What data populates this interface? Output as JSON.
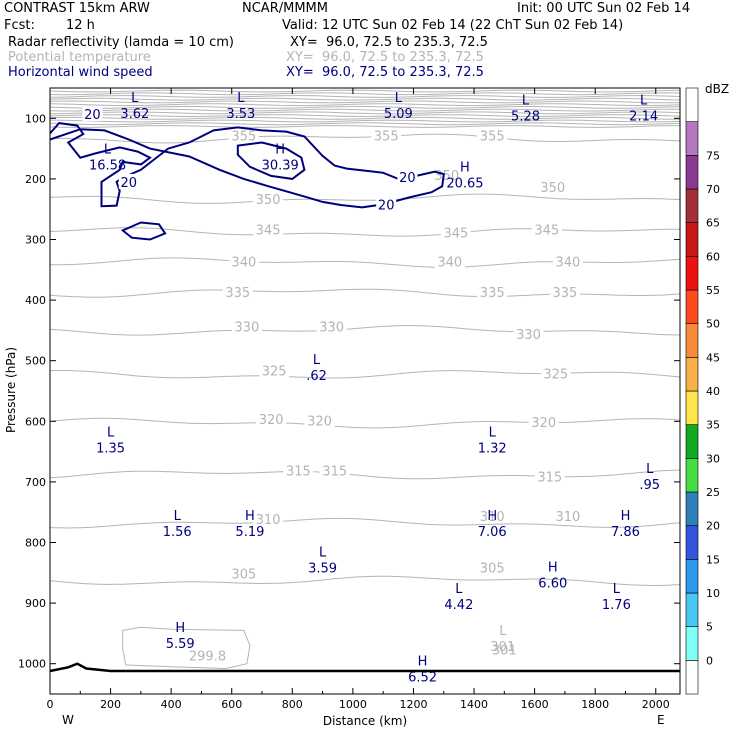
{
  "header": {
    "model": "CONTRAST 15km ARW",
    "center": "NCAR/MMMM",
    "init": "Init: 00 UTC Sun 02 Feb 14",
    "fcst_label": "Fcst:",
    "fcst_value": "12 h",
    "valid": "Valid: 12 UTC Sun 02 Feb 14 (22 ChT Sun 02 Feb 14)",
    "fields": [
      {
        "name": "Radar reflectivity (lamda = 10 cm)",
        "xy": "XY=  96.0, 72.5 to 235.3, 72.5",
        "color": "#000000"
      },
      {
        "name": "Potential temperature",
        "xy": "XY=  96.0, 72.5 to 235.3, 72.5",
        "color": "#b4b4b4"
      },
      {
        "name": "Horizontal wind speed",
        "xy": "XY=  96.0, 72.5 to 235.3, 72.5",
        "color": "#00007f"
      }
    ]
  },
  "colors": {
    "theta": "#b4b4b4",
    "wind": "#00007f",
    "axis": "#000000"
  },
  "chart_data": {
    "type": "cross-section contour",
    "xlabel": "Distance (km)",
    "ylabel": "Pressure (hPa)",
    "xlim": [
      0,
      2080
    ],
    "ylim": [
      1050,
      50
    ],
    "x_ticks": [
      0,
      200,
      400,
      600,
      800,
      1000,
      1200,
      1400,
      1600,
      1800,
      2000
    ],
    "y_ticks": [
      100,
      200,
      300,
      400,
      500,
      600,
      700,
      800,
      900,
      1000
    ],
    "x_end_labels": {
      "left": "W",
      "right": "E"
    },
    "colorbar": {
      "title": "dBZ",
      "levels": [
        0,
        5,
        10,
        15,
        20,
        25,
        30,
        35,
        40,
        45,
        50,
        55,
        60,
        65,
        70,
        75
      ],
      "colors": [
        "#ffffff",
        "#7ffff4",
        "#48c8f0",
        "#2b98e8",
        "#3355dd",
        "#2f80b8",
        "#44dd44",
        "#11aa22",
        "#ffe44a",
        "#f8b048",
        "#f88a3c",
        "#ff4a1c",
        "#ee1111",
        "#c81818",
        "#a2303a",
        "#8a3a92",
        "#b478c0",
        "#ffffff"
      ]
    },
    "theta_contours": {
      "levels": [
        305,
        310,
        315,
        320,
        325,
        330,
        335,
        340,
        345,
        350,
        355
      ],
      "line_pressure": {
        "305": 863,
        "310": 768,
        "315": 688,
        "320": 603,
        "325": 523,
        "330": 450,
        "335": 388,
        "340": 338,
        "345": 288,
        "350": 233,
        "355": 133
      },
      "labels": [
        {
          "text": "355",
          "x": 640,
          "p": 130
        },
        {
          "text": "355",
          "x": 1110,
          "p": 130
        },
        {
          "text": "355",
          "x": 1460,
          "p": 130
        },
        {
          "text": "350",
          "x": 720,
          "p": 235
        },
        {
          "text": "350",
          "x": 1310,
          "p": 195
        },
        {
          "text": "350",
          "x": 1660,
          "p": 215
        },
        {
          "text": "345",
          "x": 720,
          "p": 285
        },
        {
          "text": "345",
          "x": 1340,
          "p": 290
        },
        {
          "text": "345",
          "x": 1640,
          "p": 285
        },
        {
          "text": "340",
          "x": 640,
          "p": 338
        },
        {
          "text": "340",
          "x": 1320,
          "p": 338
        },
        {
          "text": "340",
          "x": 1710,
          "p": 338
        },
        {
          "text": "335",
          "x": 620,
          "p": 388
        },
        {
          "text": "335",
          "x": 1460,
          "p": 388
        },
        {
          "text": "335",
          "x": 1700,
          "p": 388
        },
        {
          "text": "330",
          "x": 650,
          "p": 445
        },
        {
          "text": "330",
          "x": 930,
          "p": 445
        },
        {
          "text": "330",
          "x": 1580,
          "p": 458
        },
        {
          "text": "325",
          "x": 740,
          "p": 518
        },
        {
          "text": "325",
          "x": 1670,
          "p": 523
        },
        {
          "text": "320",
          "x": 730,
          "p": 598
        },
        {
          "text": "320",
          "x": 890,
          "p": 600
        },
        {
          "text": "320",
          "x": 1630,
          "p": 603
        },
        {
          "text": "315",
          "x": 820,
          "p": 683
        },
        {
          "text": "315",
          "x": 940,
          "p": 683
        },
        {
          "text": "315",
          "x": 1650,
          "p": 693
        },
        {
          "text": "310",
          "x": 720,
          "p": 763
        },
        {
          "text": "310",
          "x": 1460,
          "p": 758
        },
        {
          "text": "310",
          "x": 1710,
          "p": 758
        },
        {
          "text": "305",
          "x": 640,
          "p": 853
        },
        {
          "text": "305",
          "x": 1460,
          "p": 843
        },
        {
          "text": "301",
          "x": 1500,
          "p": 978
        },
        {
          "text": "299.8",
          "x": 520,
          "p": 988
        }
      ]
    },
    "wind_contours": {
      "levels": [
        20
      ],
      "labels": [
        {
          "text": "20",
          "x": 140,
          "p": 93
        },
        {
          "text": "20",
          "x": 260,
          "p": 205
        },
        {
          "text": "20",
          "x": 1180,
          "p": 197
        },
        {
          "text": "20",
          "x": 1110,
          "p": 242
        }
      ]
    },
    "theta_extrema": [
      {
        "type": "L",
        "value": "301",
        "x": 1495,
        "p": 958
      }
    ],
    "theta_extrema_plain": [
      {
        "type": "",
        "value": "299.8",
        "x": 520,
        "p": 988
      }
    ],
    "wind_extrema": [
      {
        "type": "L",
        "value": "3.62",
        "x": 280,
        "p": 78
      },
      {
        "type": "L",
        "value": "3.53",
        "x": 630,
        "p": 78
      },
      {
        "type": "L",
        "value": "5.09",
        "x": 1150,
        "p": 78
      },
      {
        "type": "L",
        "value": "5.28",
        "x": 1570,
        "p": 82
      },
      {
        "type": "L",
        "value": "2.14",
        "x": 1960,
        "p": 82
      },
      {
        "type": "L",
        "value": "16.58",
        "x": 190,
        "p": 163
      },
      {
        "type": "H",
        "value": "30.39",
        "x": 760,
        "p": 163
      },
      {
        "type": "H",
        "value": "20.65",
        "x": 1370,
        "p": 193
      },
      {
        "type": "L",
        "value": ".62",
        "x": 880,
        "p": 510
      },
      {
        "type": "L",
        "value": "1.35",
        "x": 200,
        "p": 630
      },
      {
        "type": "L",
        "value": "1.32",
        "x": 1460,
        "p": 630
      },
      {
        "type": "L",
        "value": ".95",
        "x": 1980,
        "p": 690
      },
      {
        "type": "L",
        "value": "1.56",
        "x": 420,
        "p": 768
      },
      {
        "type": "H",
        "value": "5.19",
        "x": 660,
        "p": 768
      },
      {
        "type": "H",
        "value": "7.06",
        "x": 1460,
        "p": 768
      },
      {
        "type": "H",
        "value": "7.86",
        "x": 1900,
        "p": 768
      },
      {
        "type": "L",
        "value": "3.59",
        "x": 900,
        "p": 828
      },
      {
        "type": "H",
        "value": "6.60",
        "x": 1660,
        "p": 853
      },
      {
        "type": "L",
        "value": "4.42",
        "x": 1350,
        "p": 888
      },
      {
        "type": "L",
        "value": "1.76",
        "x": 1870,
        "p": 888
      },
      {
        "type": "H",
        "value": "5.59",
        "x": 430,
        "p": 953
      },
      {
        "type": "H",
        "value": "6.52",
        "x": 1230,
        "p": 1008
      }
    ]
  }
}
